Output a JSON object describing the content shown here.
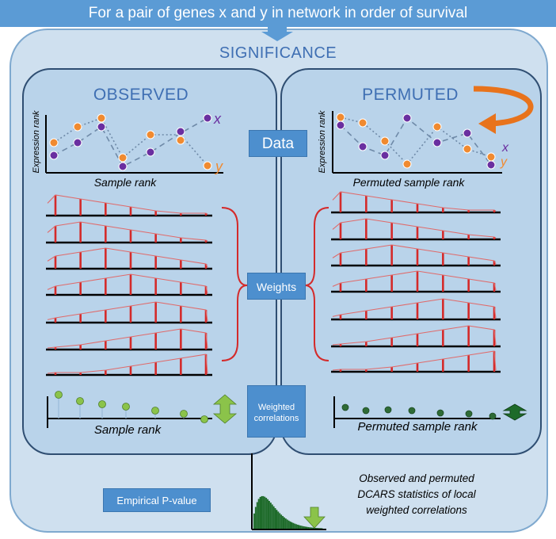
{
  "header": {
    "title": "For a pair of genes x and y in network in order of survival"
  },
  "significance_label": "SIGNIFICANCE",
  "observed": {
    "title": "OBSERVED",
    "y_axis_label": "Expression rank",
    "x_axis_label": "Sample rank",
    "series_x_label": "x",
    "series_y_label": "y",
    "bottom_axis_label": "Sample rank"
  },
  "permuted": {
    "title": "PERMUTED",
    "y_axis_label": "Expression rank",
    "x_axis_label": "Permuted sample rank",
    "series_x_label": "x",
    "series_y_label": "y",
    "bottom_axis_label": "Permuted sample rank"
  },
  "center": {
    "data_label": "Data",
    "weights_label": "Weights",
    "weighted_correlations_label": "Weighted correlations"
  },
  "bottom": {
    "empirical_label": "Empirical P-value",
    "caption_line1": "Observed and permuted",
    "caption_line2": "DCARS statistics of local",
    "caption_line3": "weighted correlations"
  },
  "colors": {
    "banner": "#5b9bd5",
    "series_x": "#6a2fa0",
    "series_y": "#f08a30",
    "weights": "#d42a2a",
    "histogram": "#1e6b2a",
    "arrow_green": "#8bc34a",
    "arrow_orange": "#e8731c"
  }
}
